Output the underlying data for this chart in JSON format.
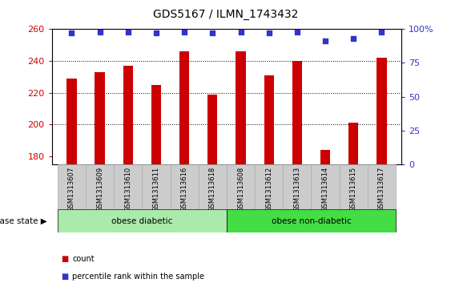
{
  "title": "GDS5167 / ILMN_1743432",
  "samples": [
    "GSM1313607",
    "GSM1313609",
    "GSM1313610",
    "GSM1313611",
    "GSM1313616",
    "GSM1313618",
    "GSM1313608",
    "GSM1313612",
    "GSM1313613",
    "GSM1313614",
    "GSM1313615",
    "GSM1313617"
  ],
  "bar_values": [
    229,
    233,
    237,
    225,
    246,
    219,
    246,
    231,
    240,
    184,
    201,
    242
  ],
  "percentile_values": [
    97,
    98,
    98,
    97,
    98,
    97,
    98,
    97,
    98,
    91,
    93,
    98
  ],
  "bar_color": "#cc0000",
  "dot_color": "#3333cc",
  "ylim_left": [
    175,
    260
  ],
  "ylim_right": [
    0,
    100
  ],
  "yticks_left": [
    180,
    200,
    220,
    240,
    260
  ],
  "yticks_right": [
    0,
    25,
    50,
    75,
    100
  ],
  "grid_values": [
    200,
    220,
    240
  ],
  "disease_groups": [
    {
      "label": "obese diabetic",
      "start": 0,
      "end": 6,
      "color": "#aaeaaa"
    },
    {
      "label": "obese non-diabetic",
      "start": 6,
      "end": 12,
      "color": "#44dd44"
    }
  ],
  "disease_state_label": "disease state",
  "bar_width": 0.35,
  "bg_color": "#ffffff",
  "plot_bg_color": "#ffffff",
  "tick_label_color_left": "#cc0000",
  "tick_label_color_right": "#3333cc",
  "xtick_bg_color": "#cccccc",
  "xtick_box_color": "#aaaaaa"
}
